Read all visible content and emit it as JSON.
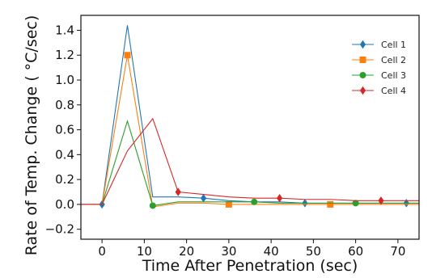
{
  "chart_data": {
    "type": "line",
    "xlabel": "Time After Penetration (sec)",
    "ylabel": "Rate of Temp. Change ( °C/sec)",
    "xlim": [
      -5,
      75
    ],
    "ylim": [
      -0.28,
      1.52
    ],
    "xticks": [
      0,
      10,
      20,
      30,
      40,
      50,
      60,
      70
    ],
    "yticks": [
      -0.2,
      0.0,
      0.2,
      0.4,
      0.6,
      0.8,
      1.0,
      1.2,
      1.4
    ],
    "ytick_labels": [
      "−0.2",
      "0.0",
      "0.2",
      "0.4",
      "0.6",
      "0.8",
      "1.0",
      "1.2",
      "1.4"
    ],
    "legend_position": "top-right",
    "grid": false,
    "series": [
      {
        "name": "Cell 1",
        "color": "#1f77b4",
        "marker": "diamond",
        "x": [
          -5,
          0,
          6,
          12,
          18,
          24,
          30,
          36,
          42,
          48,
          54,
          60,
          66,
          72,
          75
        ],
        "y": [
          0.0,
          0.0,
          1.44,
          0.06,
          0.06,
          0.05,
          0.03,
          0.02,
          0.02,
          0.01,
          0.01,
          0.01,
          0.01,
          0.01,
          0.01
        ],
        "marker_x": [
          0,
          24,
          48,
          72
        ]
      },
      {
        "name": "Cell 2",
        "color": "#ff7f0e",
        "marker": "square",
        "x": [
          -5,
          0,
          6,
          12,
          18,
          24,
          30,
          36,
          42,
          48,
          54,
          60,
          66,
          72,
          75
        ],
        "y": [
          0.0,
          0.0,
          1.2,
          -0.02,
          0.01,
          0.01,
          0.0,
          0.0,
          0.0,
          0.0,
          0.0,
          0.0,
          0.0,
          0.0,
          0.0
        ],
        "marker_x": [
          6,
          30,
          54
        ]
      },
      {
        "name": "Cell 3",
        "color": "#2ca02c",
        "marker": "circle",
        "x": [
          -5,
          0,
          6,
          12,
          18,
          24,
          30,
          36,
          42,
          48,
          54,
          60,
          66,
          72,
          75
        ],
        "y": [
          0.0,
          0.0,
          0.67,
          -0.01,
          0.02,
          0.02,
          0.02,
          0.02,
          0.01,
          0.01,
          0.01,
          0.01,
          0.01,
          0.01,
          0.01
        ],
        "marker_x": [
          12,
          36,
          60
        ]
      },
      {
        "name": "Cell 4",
        "color": "#d62728",
        "marker": "diamond",
        "x": [
          -5,
          0,
          6,
          12,
          18,
          24,
          30,
          36,
          42,
          48,
          54,
          60,
          66,
          72,
          75
        ],
        "y": [
          0.0,
          0.0,
          0.43,
          0.69,
          0.1,
          0.08,
          0.06,
          0.05,
          0.05,
          0.04,
          0.04,
          0.03,
          0.03,
          0.03,
          0.03
        ],
        "marker_x": [
          18,
          42,
          66
        ]
      }
    ]
  }
}
